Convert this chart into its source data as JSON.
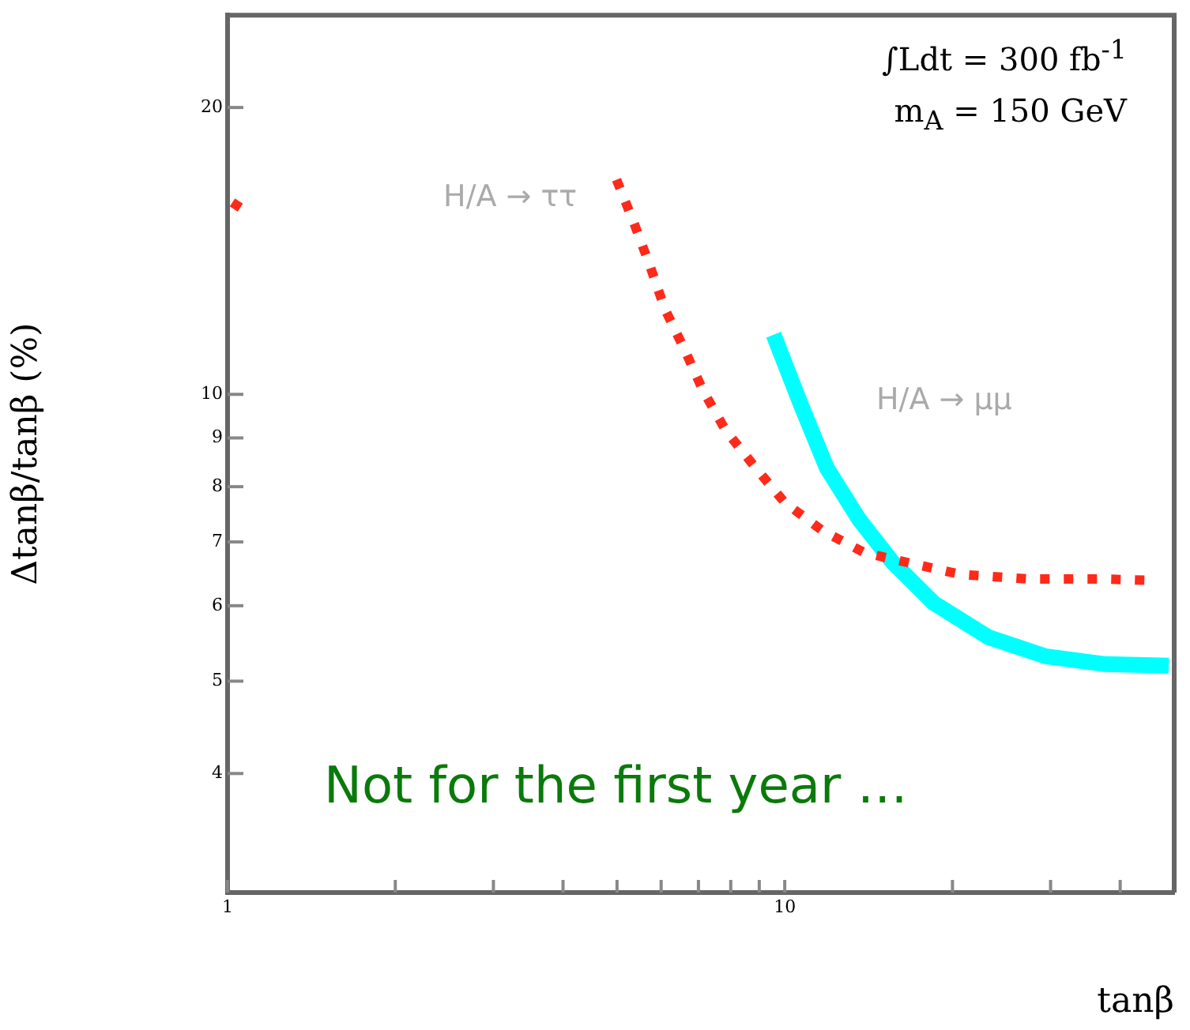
{
  "chart_data": {
    "type": "line",
    "xlabel": "tanβ",
    "ylabel": "Δtanβ/tanβ (%)",
    "log": "xy",
    "xlim": [
      1,
      50
    ],
    "ylim": [
      3,
      25
    ],
    "xticks": [
      1,
      {
        "value": 2,
        "label": null
      },
      {
        "value": 3,
        "label": null
      },
      {
        "value": 4,
        "label": null
      },
      {
        "value": 5,
        "label": null
      },
      {
        "value": 6,
        "label": null
      },
      {
        "value": 7,
        "label": null
      },
      {
        "value": 8,
        "label": null
      },
      {
        "value": 9,
        "label": null
      },
      10,
      {
        "value": 20,
        "label": null
      },
      {
        "value": 30,
        "label": null
      },
      {
        "value": 40,
        "label": null
      }
    ],
    "yticks": [
      4,
      5,
      6,
      7,
      8,
      9,
      10,
      20
    ],
    "grid": false,
    "legend": false,
    "annotations": [
      "∫Ldt = 300 fb$^{-1}$",
      "m$_{A}$ = 150 GeV",
      "Not for the first year …"
    ],
    "series": [
      {
        "name": "H/A → ττ",
        "color": "#ff2a1a",
        "line_style": "dotted",
        "x": [
          1.02,
          1.09,
          2,
          4.99,
          5.37,
          5.74,
          6.09,
          6.63,
          7.13,
          7.83,
          8.87,
          10,
          11.7,
          13.9,
          17,
          20.7,
          27.5,
          37.3,
          45.5
        ],
        "values": [
          15.9,
          15.5,
          null,
          16.8,
          15.1,
          13.6,
          12.3,
          11.1,
          10.1,
          9.17,
          8.37,
          7.7,
          7.19,
          6.82,
          6.64,
          6.47,
          6.4,
          6.4,
          6.38
        ]
      },
      {
        "name": "H/A → μμ",
        "color": "#00ffff",
        "line_style": "solid",
        "x": [
          9.55,
          10.7,
          11.9,
          13.6,
          15.6,
          18.5,
          23.2,
          29.4,
          37.6,
          48.9
        ],
        "values": [
          11.55,
          9.74,
          8.37,
          7.39,
          6.67,
          6.04,
          5.56,
          5.31,
          5.21,
          5.19
        ]
      }
    ]
  }
}
